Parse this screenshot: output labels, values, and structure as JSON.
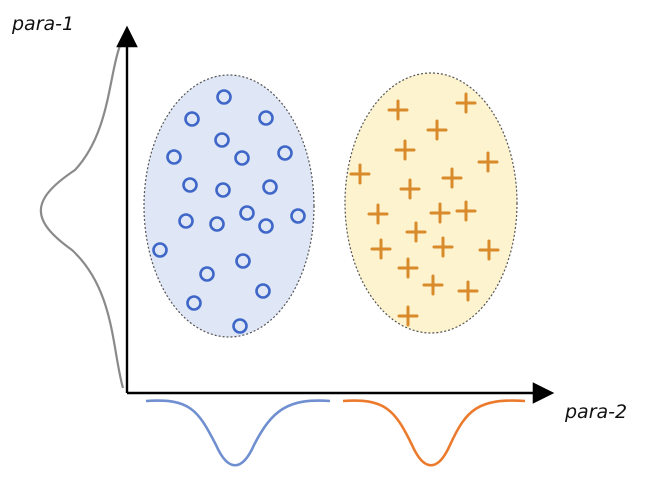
{
  "labels": {
    "y_axis": "para-1",
    "x_axis": "para-2"
  },
  "colors": {
    "axis": "#000000",
    "y_density_curve": "#8a8a8a",
    "cluster_a_fill": "#dfe7f7",
    "cluster_a_marker": "#3f67c8",
    "cluster_a_density": "#6f8fd0",
    "cluster_b_fill": "#fdf3cf",
    "cluster_b_marker": "#d98a2a",
    "cluster_b_density": "#ec7a2c",
    "cluster_outline": "#555555"
  },
  "clusters": [
    {
      "name": "",
      "marker": "circle",
      "count": 25
    },
    {
      "name": "",
      "marker": "plus",
      "count": 25
    }
  ]
}
